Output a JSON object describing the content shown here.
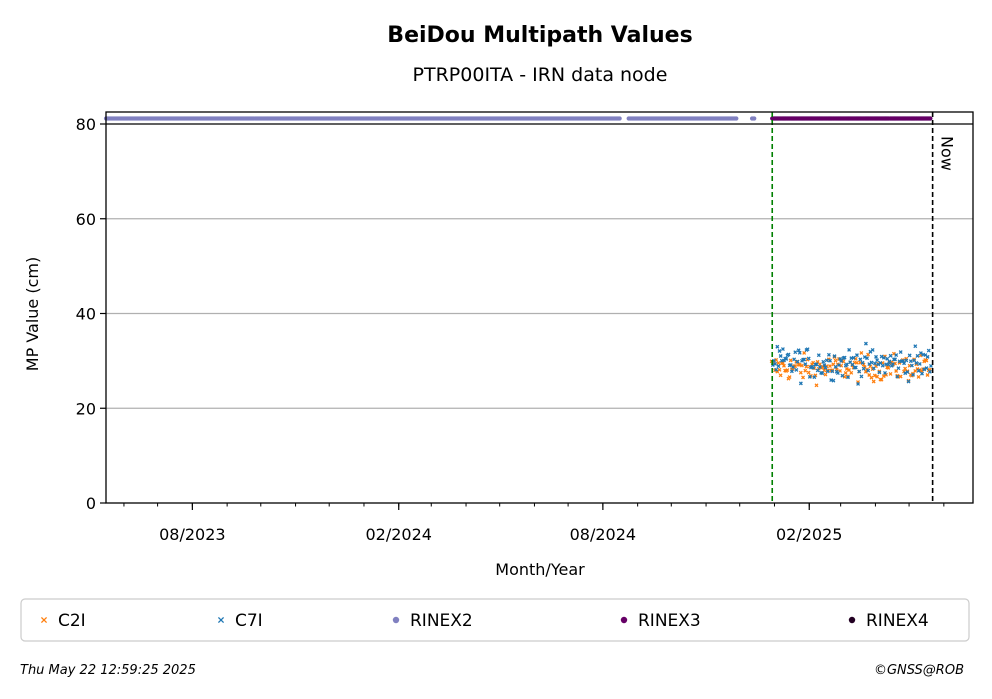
{
  "chart_data": {
    "type": "scatter",
    "title": "BeiDou Multipath Values",
    "subtitle": "PTRP00ITA - IRN data node",
    "xlabel": "Month/Year",
    "ylabel": "MP Value (cm)",
    "ylim": [
      0,
      80
    ],
    "xlim": [
      "2023-05-16",
      "2025-06-27"
    ],
    "x_ticks": [
      {
        "date": "2023-08-01",
        "label": "08/2023"
      },
      {
        "date": "2024-02-01",
        "label": "02/2024"
      },
      {
        "date": "2024-08-01",
        "label": "08/2024"
      },
      {
        "date": "2025-02-01",
        "label": "02/2025"
      }
    ],
    "y_ticks": [
      0,
      20,
      40,
      60,
      80
    ],
    "grid": "horizontal",
    "markers": [
      {
        "date": "2024-12-30",
        "color": "#008000",
        "style": "dashed"
      },
      {
        "date": "2025-05-22",
        "label": "Now",
        "color": "#000000",
        "style": "dashed"
      }
    ],
    "series": [
      {
        "name": "C2I",
        "marker": "x",
        "color": "#ff7f0e",
        "x_range": [
          "2024-12-30",
          "2025-05-20"
        ],
        "values_mean": 28.5,
        "values_range": [
          23,
          35
        ]
      },
      {
        "name": "C7I",
        "marker": "x",
        "color": "#1f77b4",
        "x_range": [
          "2024-12-30",
          "2025-05-20"
        ],
        "values_mean": 29.5,
        "values_range": [
          22,
          36.5
        ]
      },
      {
        "name": "RINEX2",
        "marker": "o",
        "color": "#8080c0",
        "y": 81,
        "x_ranges": [
          [
            "2023-05-16",
            "2024-08-16"
          ],
          [
            "2024-08-24",
            "2024-11-28"
          ],
          [
            "2024-12-12",
            "2024-12-14"
          ],
          [
            "2024-12-30",
            "2025-05-20"
          ]
        ]
      },
      {
        "name": "RINEX3",
        "marker": "o",
        "color": "#660066",
        "y": 81,
        "x_ranges": [
          [
            "2024-12-30",
            "2025-05-20"
          ]
        ]
      },
      {
        "name": "RINEX4",
        "marker": "o",
        "color": "#220022",
        "y": 81,
        "x_ranges": []
      }
    ],
    "legend_position": "bottom"
  },
  "footer": {
    "timestamp": "Thu May 22 12:59:25 2025",
    "credit": "©GNSS@ROB"
  }
}
